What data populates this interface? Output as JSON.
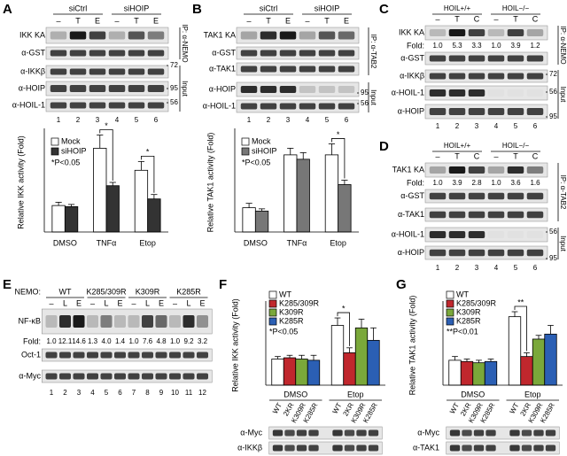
{
  "panels": {
    "A": {
      "label": "A",
      "groups": [
        "siCtrl",
        "siHOIP"
      ],
      "conditions": [
        "–",
        "T",
        "E",
        "–",
        "T",
        "E"
      ],
      "ip_blots": [
        "IKK KA",
        "α-GST"
      ],
      "ip_label": "IP: α-NEMO",
      "input_blots": [
        "α-IKKβ",
        "α-HOIP",
        "α-HOIL-1"
      ],
      "input_label": "Input",
      "markers": [
        "72",
        "95",
        "56"
      ],
      "lanes": [
        "1",
        "2",
        "3",
        "4",
        "5",
        "6"
      ]
    },
    "B": {
      "label": "B",
      "groups": [
        "siCtrl",
        "siHOIP"
      ],
      "conditions": [
        "–",
        "T",
        "E",
        "–",
        "T",
        "E"
      ],
      "ip_blots": [
        "TAK1 KA",
        "α-GST",
        "α-TAK1"
      ],
      "ip_label": "IP: α-TAB2",
      "input_blots": [
        "α-HOIP",
        "α-HOIL-1"
      ],
      "input_label": "Input",
      "markers": [
        "95",
        "56"
      ],
      "lanes": [
        "1",
        "2",
        "3",
        "4",
        "5",
        "6"
      ]
    },
    "C": {
      "label": "C",
      "groups": [
        "HOIL+/+",
        "HOIL−/−"
      ],
      "conditions": [
        "–",
        "T",
        "C",
        "–",
        "T",
        "C"
      ],
      "ip_blots": [
        "IKK KA",
        "α-GST"
      ],
      "fold_label": "Fold:",
      "fold": [
        "1.0",
        "5.3",
        "3.3",
        "1.0",
        "3.9",
        "1.2"
      ],
      "ip_label": "IP: α-NEMO",
      "input_blots": [
        "α-IKKβ",
        "α-HOIL-1",
        "α-HOIP"
      ],
      "input_label": "Input",
      "markers": [
        "72",
        "56",
        "95"
      ],
      "lanes": [
        "1",
        "2",
        "3",
        "4",
        "5",
        "6"
      ]
    },
    "D": {
      "label": "D",
      "groups": [
        "HOIL+/+",
        "HOIL−/−"
      ],
      "conditions": [
        "–",
        "T",
        "C",
        "–",
        "T",
        "C"
      ],
      "ip_blots": [
        "TAK1 KA",
        "α-GST",
        "α-TAK1"
      ],
      "fold_label": "Fold:",
      "fold": [
        "1.0",
        "3.9",
        "2.8",
        "1.0",
        "3.6",
        "1.6"
      ],
      "ip_label": "IP: α-TAB2",
      "input_blots": [
        "α-HOIL-1",
        "α-HOIP"
      ],
      "input_label": "Input",
      "markers": [
        "56",
        "95"
      ],
      "lanes": [
        "1",
        "2",
        "3",
        "4",
        "5",
        "6"
      ]
    },
    "E": {
      "label": "E",
      "row_label": "NEMO:",
      "groups": [
        "WT",
        "K285/309R",
        "K309R",
        "K285R"
      ],
      "conditions": [
        "–",
        "L",
        "E",
        "–",
        "L",
        "E",
        "–",
        "L",
        "E",
        "–",
        "L",
        "E"
      ],
      "blots": [
        "NF-κB",
        "Oct-1",
        "α-Myc"
      ],
      "fold_label": "Fold:",
      "fold": [
        "1.0",
        "12.1",
        "14.6",
        "1.3",
        "4.0",
        "1.4",
        "1.0",
        "7.6",
        "4.8",
        "1.0",
        "9.2",
        "3.2"
      ],
      "lanes": [
        "1",
        "2",
        "3",
        "4",
        "5",
        "6",
        "7",
        "8",
        "9",
        "10",
        "11",
        "12"
      ]
    },
    "F": {
      "label": "F",
      "blots": [
        "α-Myc",
        "α-IKKβ"
      ]
    },
    "G": {
      "label": "G",
      "blots": [
        "α-Myc",
        "α-TAK1"
      ]
    }
  },
  "chart_data": [
    {
      "type": "bar",
      "y_label": "Relative IKK activity (Fold)",
      "categories": [
        "DMSO",
        "TNFα",
        "Etop"
      ],
      "ylim": [
        0,
        4.5
      ],
      "series": [
        {
          "name": "Mock",
          "color": "#ffffff",
          "values": [
            1.2,
            3.8,
            2.8
          ],
          "errors": [
            0.15,
            0.6,
            0.4
          ]
        },
        {
          "name": "siHOIP",
          "color": "#333333",
          "values": [
            1.15,
            2.1,
            1.5
          ],
          "errors": [
            0.1,
            0.15,
            0.2
          ]
        }
      ],
      "note": "*P<0.05",
      "annotations": [
        {
          "text": "*",
          "category": "TNFα",
          "series": [
            "Mock",
            "siHOIP"
          ]
        },
        {
          "text": "*",
          "category": "Etop",
          "series": [
            "Mock",
            "siHOIP"
          ]
        }
      ]
    },
    {
      "type": "bar",
      "y_label": "Relative TAK1 activity (Fold)",
      "categories": [
        "DMSO",
        "TNFα",
        "Etop"
      ],
      "ylim": [
        0,
        4.5
      ],
      "series": [
        {
          "name": "Mock",
          "color": "#ffffff",
          "values": [
            1.1,
            3.5,
            3.5
          ],
          "errors": [
            0.2,
            0.3,
            0.5
          ]
        },
        {
          "name": "siHOIP",
          "color": "#777777",
          "values": [
            0.95,
            3.3,
            2.15
          ],
          "errors": [
            0.1,
            0.3,
            0.2
          ]
        }
      ],
      "note": "*P<0.05",
      "annotations": [
        {
          "text": "*",
          "category": "Etop",
          "series": [
            "Mock",
            "siHOIP"
          ]
        }
      ]
    },
    {
      "type": "bar",
      "y_label": "Relative IKK activity (Fold)",
      "categories": [
        "DMSO",
        "Etop"
      ],
      "ylim": [
        0,
        3.2
      ],
      "bar_labels": [
        "WT",
        "2KR",
        "K309R",
        "K285R"
      ],
      "series": [
        {
          "name": "WT",
          "color": "#ffffff",
          "values": [
            1.05,
            2.4
          ],
          "errors": [
            0.1,
            0.3
          ]
        },
        {
          "name": "K285/309R",
          "color": "#c0272d",
          "values": [
            1.1,
            1.3
          ],
          "errors": [
            0.1,
            0.2
          ]
        },
        {
          "name": "K309R",
          "color": "#7aa83a",
          "values": [
            1.05,
            2.3
          ],
          "errors": [
            0.15,
            0.35
          ]
        },
        {
          "name": "K285R",
          "color": "#2b5fb4",
          "values": [
            1.0,
            1.8
          ],
          "errors": [
            0.2,
            0.5
          ]
        }
      ],
      "note": "*P<0.05",
      "annotations": [
        {
          "text": "*",
          "category": "Etop",
          "series": [
            "WT",
            "K285/309R"
          ]
        }
      ]
    },
    {
      "type": "bar",
      "y_label": "Relative TAK1 activity (Fold)",
      "categories": [
        "DMSO",
        "Etop"
      ],
      "ylim": [
        0,
        3.2
      ],
      "bar_labels": [
        "WT",
        "2KR",
        "K309R",
        "K285R"
      ],
      "series": [
        {
          "name": "WT",
          "color": "#ffffff",
          "values": [
            1.0,
            2.75
          ],
          "errors": [
            0.15,
            0.2
          ]
        },
        {
          "name": "K285/309R",
          "color": "#c0272d",
          "values": [
            0.95,
            1.15
          ],
          "errors": [
            0.1,
            0.15
          ]
        },
        {
          "name": "K309R",
          "color": "#7aa83a",
          "values": [
            0.9,
            1.85
          ],
          "errors": [
            0.1,
            0.15
          ]
        },
        {
          "name": "K285R",
          "color": "#2b5fb4",
          "values": [
            0.95,
            2.05
          ],
          "errors": [
            0.1,
            0.35
          ]
        }
      ],
      "note": "**P<0.01",
      "annotations": [
        {
          "text": "**",
          "category": "Etop",
          "series": [
            "WT",
            "K285/309R"
          ]
        }
      ]
    }
  ]
}
